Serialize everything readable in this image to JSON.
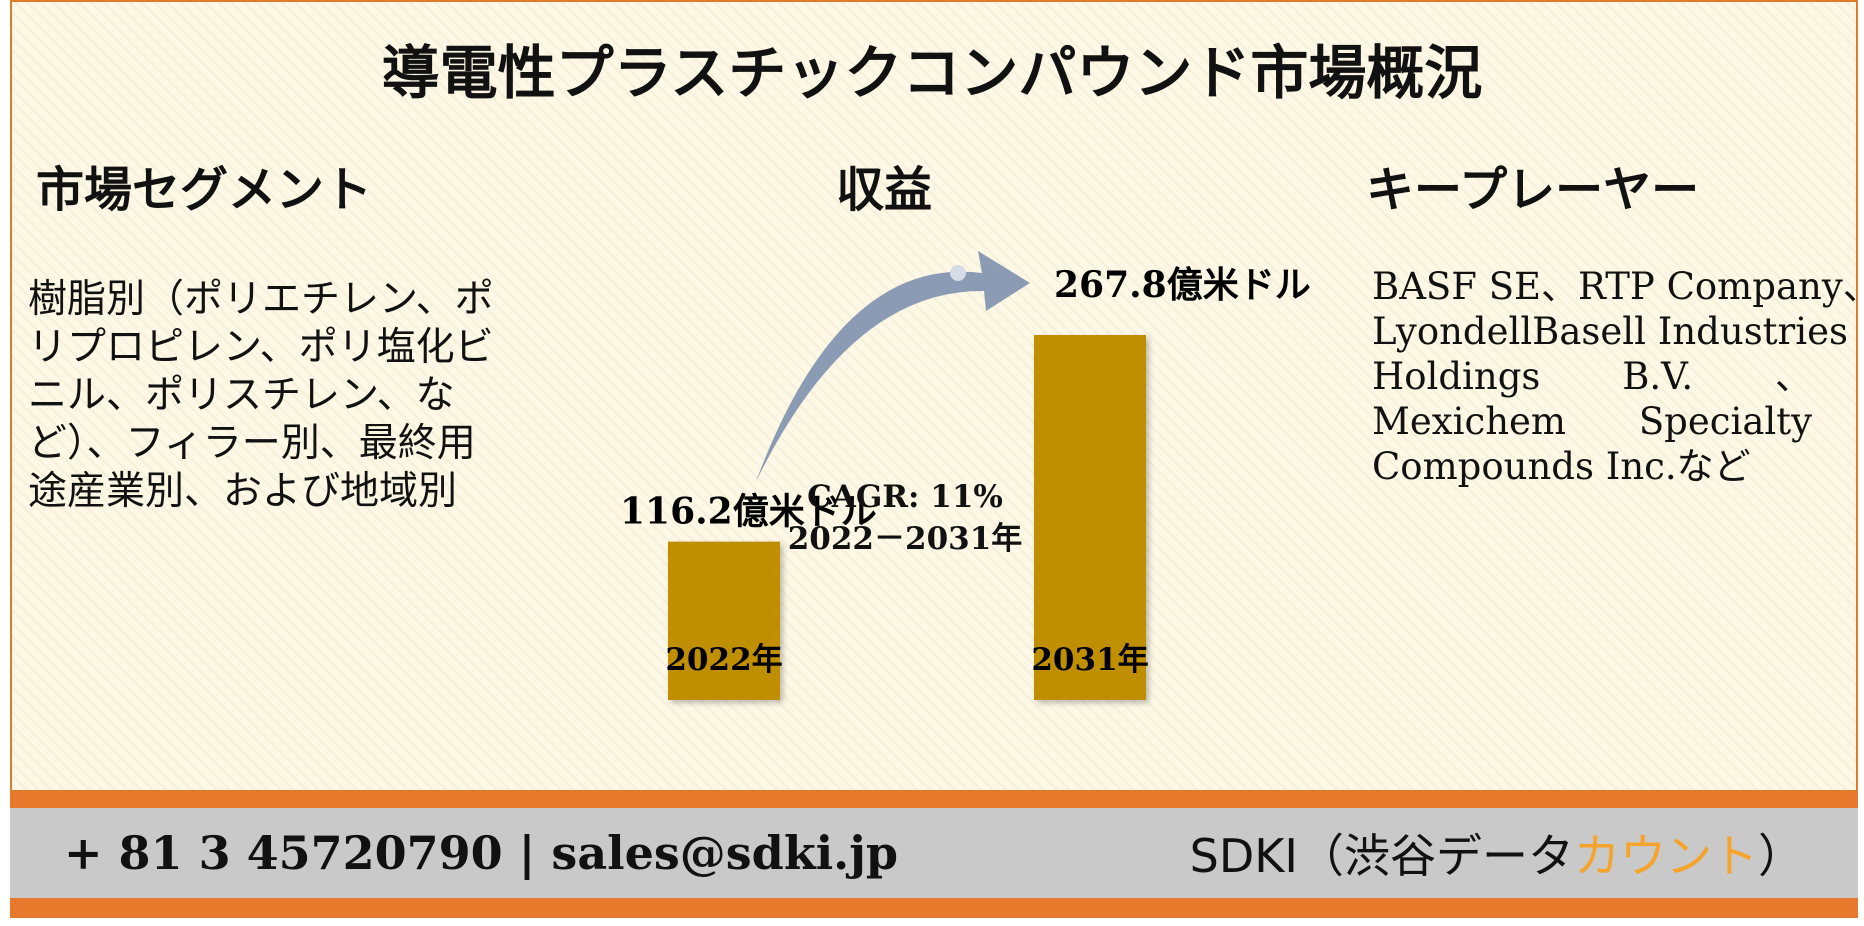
{
  "title": "導電性プラスチックコンパウンド市場概況",
  "segment": {
    "heading": "市場セグメント",
    "lines": [
      "樹脂別（ポリエチレン、ポ",
      "リプロピレン、ポリ塩化ビ",
      "ニル、ポリスチレン、な",
      "ど）、フィラー別、最終用",
      "途産業別、および地域別"
    ]
  },
  "revenue": {
    "heading": "収益"
  },
  "key_players": {
    "heading": "キープレーヤー",
    "lines": [
      "BASF SE、RTP Company、",
      "LyondellBasell Industries",
      "Holdings B.V. 、",
      "Mexichem Specialty",
      "Compounds Inc.など"
    ]
  },
  "chart_data": {
    "type": "bar",
    "categories": [
      "2022年",
      "2031年"
    ],
    "values": [
      116.2,
      267.8
    ],
    "value_labels": [
      "116.2億米ドル",
      "267.8億米ドル"
    ],
    "unit": "億米ドル",
    "annotation": {
      "cagr": "CAGR: 11%",
      "period": "2022－2031年"
    },
    "bar_color": "#bf8f00",
    "ylim": [
      0,
      267.8
    ],
    "grid": false
  },
  "footer": {
    "contact": "+ 81 3 45720790 | sales@sdki.jp",
    "brand_main": "SDKI（渋谷データ",
    "brand_accent": "カウント",
    "brand_end": "）"
  },
  "colors": {
    "border": "#e07b2a",
    "footer_band": "#e8792c",
    "footer_inner": "#c9c9c9",
    "brand_accent": "#f5a32a",
    "arrow": "#8a9bb3"
  }
}
